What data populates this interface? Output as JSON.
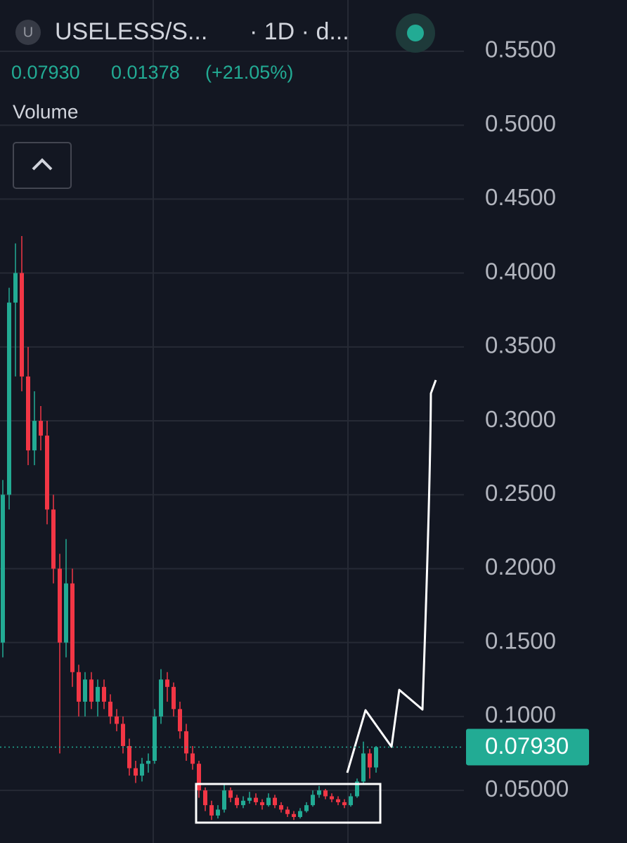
{
  "header": {
    "icon": "U",
    "symbol": "USELESS/S...",
    "interval": "· 1D · d...",
    "price": "0.07930",
    "change": "0.01378",
    "change_pct": "(+21.05%)",
    "volume_label": "Volume"
  },
  "chart_data": {
    "type": "candlestick",
    "up_color": "#22ab94",
    "down_color": "#f23645",
    "ylim": [
      0.0144,
      0.5847
    ],
    "yticks": [
      {
        "value": 0.05,
        "label": "0.05000"
      },
      {
        "value": 0.1,
        "label": "0.1000"
      },
      {
        "value": 0.15,
        "label": "0.1500"
      },
      {
        "value": 0.2,
        "label": "0.2000"
      },
      {
        "value": 0.25,
        "label": "0.2500"
      },
      {
        "value": 0.3,
        "label": "0.3000"
      },
      {
        "value": 0.35,
        "label": "0.3500"
      },
      {
        "value": 0.4,
        "label": "0.4000"
      },
      {
        "value": 0.45,
        "label": "0.4500"
      },
      {
        "value": 0.5,
        "label": "0.5000"
      },
      {
        "value": 0.55,
        "label": "0.5500"
      }
    ],
    "grid": true,
    "last_price": {
      "value": 0.0793,
      "label": "0.07930"
    },
    "candles": [
      [
        0.15,
        0.26,
        0.14,
        0.25
      ],
      [
        0.25,
        0.39,
        0.24,
        0.38
      ],
      [
        0.38,
        0.42,
        0.33,
        0.4
      ],
      [
        0.4,
        0.425,
        0.32,
        0.33
      ],
      [
        0.33,
        0.35,
        0.27,
        0.28
      ],
      [
        0.28,
        0.32,
        0.27,
        0.3
      ],
      [
        0.3,
        0.31,
        0.28,
        0.29
      ],
      [
        0.29,
        0.3,
        0.23,
        0.24
      ],
      [
        0.24,
        0.25,
        0.19,
        0.2
      ],
      [
        0.2,
        0.21,
        0.075,
        0.15
      ],
      [
        0.15,
        0.22,
        0.14,
        0.19
      ],
      [
        0.19,
        0.2,
        0.12,
        0.13
      ],
      [
        0.13,
        0.135,
        0.1,
        0.11
      ],
      [
        0.11,
        0.13,
        0.1,
        0.125
      ],
      [
        0.125,
        0.13,
        0.105,
        0.11
      ],
      [
        0.11,
        0.125,
        0.1,
        0.12
      ],
      [
        0.12,
        0.125,
        0.105,
        0.11
      ],
      [
        0.11,
        0.115,
        0.095,
        0.1
      ],
      [
        0.1,
        0.105,
        0.09,
        0.095
      ],
      [
        0.095,
        0.1,
        0.075,
        0.08
      ],
      [
        0.08,
        0.085,
        0.06,
        0.065
      ],
      [
        0.065,
        0.07,
        0.055,
        0.06
      ],
      [
        0.06,
        0.072,
        0.056,
        0.068
      ],
      [
        0.068,
        0.075,
        0.062,
        0.07
      ],
      [
        0.07,
        0.105,
        0.068,
        0.1
      ],
      [
        0.1,
        0.132,
        0.095,
        0.125
      ],
      [
        0.125,
        0.13,
        0.11,
        0.12
      ],
      [
        0.12,
        0.123,
        0.1,
        0.105
      ],
      [
        0.105,
        0.11,
        0.085,
        0.09
      ],
      [
        0.09,
        0.095,
        0.07,
        0.075
      ],
      [
        0.075,
        0.08,
        0.064,
        0.068
      ],
      [
        0.068,
        0.07,
        0.045,
        0.05
      ],
      [
        0.05,
        0.052,
        0.036,
        0.04
      ],
      [
        0.04,
        0.043,
        0.03,
        0.033
      ],
      [
        0.033,
        0.04,
        0.031,
        0.037
      ],
      [
        0.037,
        0.055,
        0.035,
        0.05
      ],
      [
        0.05,
        0.052,
        0.042,
        0.045
      ],
      [
        0.045,
        0.047,
        0.038,
        0.04
      ],
      [
        0.04,
        0.046,
        0.038,
        0.043
      ],
      [
        0.043,
        0.049,
        0.041,
        0.045
      ],
      [
        0.045,
        0.048,
        0.04,
        0.042
      ],
      [
        0.042,
        0.044,
        0.037,
        0.04
      ],
      [
        0.04,
        0.048,
        0.039,
        0.045
      ],
      [
        0.045,
        0.047,
        0.038,
        0.04
      ],
      [
        0.04,
        0.042,
        0.035,
        0.037
      ],
      [
        0.037,
        0.039,
        0.032,
        0.034
      ],
      [
        0.034,
        0.036,
        0.03,
        0.032
      ],
      [
        0.032,
        0.038,
        0.031,
        0.036
      ],
      [
        0.036,
        0.042,
        0.035,
        0.04
      ],
      [
        0.04,
        0.05,
        0.039,
        0.047
      ],
      [
        0.047,
        0.053,
        0.045,
        0.05
      ],
      [
        0.05,
        0.051,
        0.044,
        0.046
      ],
      [
        0.046,
        0.048,
        0.042,
        0.044
      ],
      [
        0.044,
        0.046,
        0.04,
        0.042
      ],
      [
        0.042,
        0.044,
        0.038,
        0.04
      ],
      [
        0.04,
        0.048,
        0.039,
        0.046
      ],
      [
        0.046,
        0.058,
        0.045,
        0.056
      ],
      [
        0.056,
        0.083,
        0.054,
        0.075
      ],
      [
        0.075,
        0.078,
        0.058,
        0.0655
      ],
      [
        0.0655,
        0.08,
        0.062,
        0.0793
      ]
    ]
  }
}
